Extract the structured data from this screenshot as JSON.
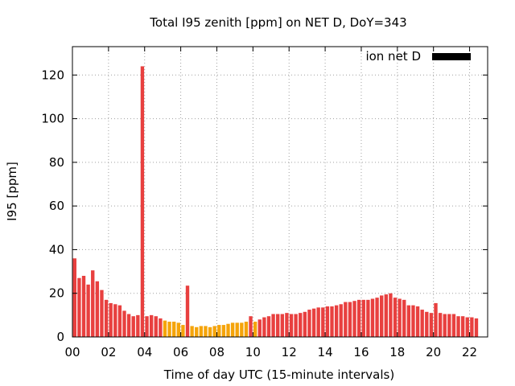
{
  "chart_data": {
    "type": "bar",
    "title": "Total I95 zenith [ppm] on NET D, DoY=343",
    "xlabel": "Time of day UTC (15-minute intervals)",
    "ylabel": "I95 [ppm]",
    "xlim": [
      0,
      23
    ],
    "ylim": [
      0,
      133
    ],
    "x_ticks": [
      "00",
      "02",
      "04",
      "06",
      "08",
      "10",
      "12",
      "14",
      "16",
      "18",
      "20",
      "22"
    ],
    "y_ticks": [
      0,
      20,
      40,
      60,
      80,
      100,
      120
    ],
    "grid": true,
    "legend": {
      "label": "ion net D",
      "color": "#000000",
      "placement": "top-right"
    },
    "colors": {
      "red": "#e8403f",
      "orange": "#f5a40a"
    },
    "series": [
      {
        "x": [
          0.0,
          0.25,
          0.5,
          0.75,
          1.0,
          1.25,
          1.5,
          1.75,
          2.0,
          2.25,
          2.5,
          2.75,
          3.0,
          3.25,
          3.5,
          3.75,
          4.0,
          4.25,
          4.5,
          4.75,
          5.0,
          5.25,
          5.5,
          5.75,
          6.0,
          6.25,
          6.5,
          6.75,
          7.0,
          7.25,
          7.5,
          7.75,
          8.0,
          8.25,
          8.5,
          8.75,
          9.0,
          9.25,
          9.5,
          9.75,
          10.0,
          10.25,
          10.5,
          10.75,
          11.0,
          11.25,
          11.5,
          11.75,
          12.0,
          12.25,
          12.5,
          12.75,
          13.0,
          13.25,
          13.5,
          13.75,
          14.0,
          14.25,
          14.5,
          14.75,
          15.0,
          15.25,
          15.5,
          15.75,
          16.0,
          16.25,
          16.5,
          16.75,
          17.0,
          17.25,
          17.5,
          17.75,
          18.0,
          18.25,
          18.5,
          18.75,
          19.0,
          19.25,
          19.5,
          19.75,
          20.0,
          20.25,
          20.5,
          20.75,
          21.0,
          21.25,
          21.5,
          21.75,
          22.0,
          22.25,
          22.5,
          22.75
        ],
        "values": [
          36,
          27,
          28,
          24,
          30.5,
          25.5,
          21.5,
          17,
          15.5,
          15,
          14.5,
          12,
          10.5,
          9.5,
          10,
          124,
          9.5,
          10,
          9.5,
          8.5,
          7.5,
          7,
          7,
          6.5,
          5.5,
          23.5,
          5,
          4.5,
          5,
          5,
          4.5,
          5,
          5.5,
          5.5,
          6,
          6.5,
          6.5,
          6.5,
          7,
          9.5,
          7,
          8,
          9,
          9.5,
          10.5,
          10.5,
          10.5,
          11,
          10.5,
          10.5,
          11,
          11.5,
          12.5,
          13,
          13.5,
          13.5,
          14,
          14,
          14.5,
          15,
          16,
          16,
          16.5,
          17,
          17,
          17,
          17.5,
          18,
          19,
          19.5,
          20,
          18,
          17.5,
          17,
          14.5,
          14.5,
          14,
          12.5,
          11.5,
          11,
          15.5,
          11,
          10.5,
          10.5,
          10.5,
          9.5,
          9.5,
          9,
          9,
          8.5,
          0,
          0
        ],
        "bar_colors": [
          "red",
          "red",
          "red",
          "red",
          "red",
          "red",
          "red",
          "red",
          "red",
          "red",
          "red",
          "red",
          "red",
          "red",
          "red",
          "red",
          "red",
          "red",
          "red",
          "red",
          "orange",
          "orange",
          "orange",
          "orange",
          "orange",
          "red",
          "orange",
          "orange",
          "orange",
          "orange",
          "orange",
          "orange",
          "orange",
          "orange",
          "orange",
          "orange",
          "orange",
          "orange",
          "orange",
          "red",
          "orange",
          "red",
          "red",
          "red",
          "red",
          "red",
          "red",
          "red",
          "red",
          "red",
          "red",
          "red",
          "red",
          "red",
          "red",
          "red",
          "red",
          "red",
          "red",
          "red",
          "red",
          "red",
          "red",
          "red",
          "red",
          "red",
          "red",
          "red",
          "red",
          "red",
          "red",
          "red",
          "red",
          "red",
          "red",
          "red",
          "red",
          "red",
          "red",
          "red",
          "red",
          "red",
          "red",
          "red",
          "red",
          "red",
          "red",
          "red",
          "red",
          "red",
          "red",
          "red"
        ]
      }
    ]
  }
}
